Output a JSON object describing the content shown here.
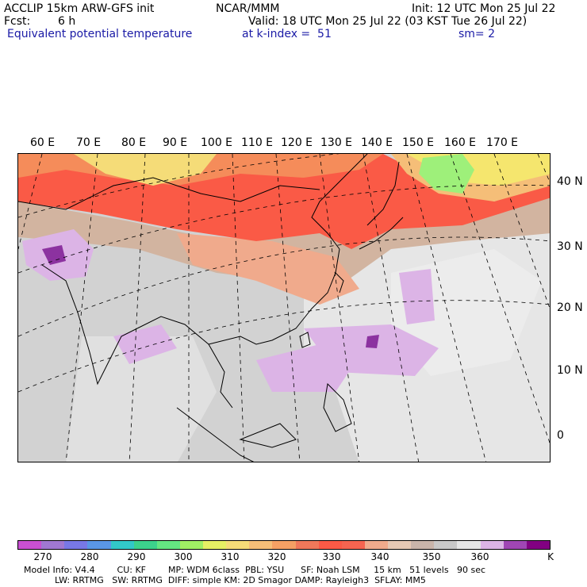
{
  "header": {
    "model": "ACCLIP 15km ARW-GFS init",
    "org": "NCAR/MMM",
    "init": "Init: 12 UTC Mon 25 Jul 22",
    "fcst_label": "Fcst:",
    "fcst_value": "6 h",
    "valid": "Valid: 18 UTC Mon 25 Jul 22 (03 KST Tue 26 Jul 22)",
    "field": "Equivalent potential temperature",
    "level": "at k-index =  51",
    "smooth": "sm= 2"
  },
  "map": {
    "lon_labels": [
      "60 E",
      "70 E",
      "80 E",
      "90 E",
      "100 E",
      "110 E",
      "120 E",
      "130 E",
      "140 E",
      "150 E",
      "160 E",
      "170 E"
    ],
    "lat_labels": [
      "40 N",
      "30 N",
      "20 N",
      "10 N",
      "0"
    ],
    "colors": {
      "hot_red": "#fa5a46",
      "orange": "#f58c5a",
      "salmon": "#f0aa8c",
      "tan": "#d2b4a0",
      "gray": "#c8c8c8",
      "light_gray": "#e6e6e6",
      "lavender": "#dcb4e6",
      "purple": "#8c32a0",
      "yellow": "#f5e66e",
      "green": "#9ef07a"
    }
  },
  "colorbar": {
    "colors": [
      "#c850d2",
      "#a078d2",
      "#7878e6",
      "#5a96e6",
      "#32c8c8",
      "#3cd28c",
      "#64e682",
      "#a0f064",
      "#e6f064",
      "#f5dc78",
      "#f5be78",
      "#f5a064",
      "#f0785a",
      "#fa5a46",
      "#f56450",
      "#f0aa8c",
      "#e6c8b4",
      "#c8b4aa",
      "#c8c8c8",
      "#e6e6e6",
      "#dcb4e6",
      "#a046b4",
      "#820082"
    ],
    "ticks": [
      "270",
      "280",
      "290",
      "300",
      "310",
      "320",
      "330",
      "340",
      "350",
      "360",
      "K"
    ]
  },
  "footer": {
    "line1": "Model Info: V4.4        CU: KF        MP: WDM 6class  PBL: YSU      SF: Noah LSM     15 km   51 levels   90 sec",
    "line2": "LW: RRTMG   SW: RRTMG  DIFF: simple KM: 2D Smagor DAMP: Rayleigh3  SFLAY: MM5"
  }
}
